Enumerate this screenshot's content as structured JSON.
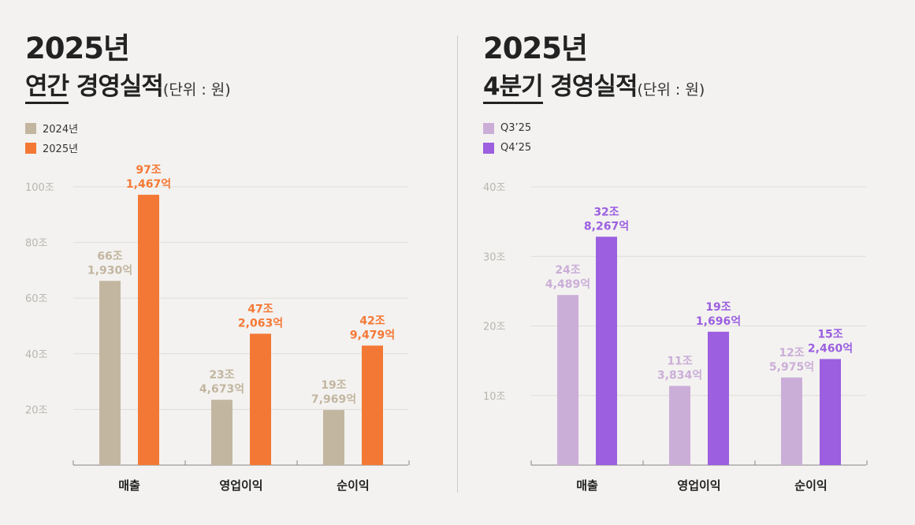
{
  "panels": [
    {
      "title_year": "2025년",
      "title_underlined": "연간",
      "title_rest": " 경영실적",
      "unit": "(단위 : 원)",
      "chart_data": {
        "type": "bar",
        "categories": [
          "매출",
          "영업이익",
          "순이익"
        ],
        "y_ticks": [
          20,
          40,
          60,
          80,
          100
        ],
        "y_tick_labels": [
          "20조",
          "40조",
          "60조",
          "80조",
          "100조"
        ],
        "ylim": [
          0,
          100
        ],
        "grid": true,
        "legend": "top-left",
        "series": [
          {
            "name": "2024년",
            "color": "#c3b6a0",
            "values": [
              66.193,
              23.4673,
              19.7969
            ],
            "labels": [
              [
                "66조",
                "1,930억"
              ],
              [
                "23조",
                "4,673억"
              ],
              [
                "19조",
                "7,969억"
              ]
            ]
          },
          {
            "name": "2025년",
            "color": "#f47835",
            "values": [
              97.1467,
              47.2063,
              42.9479
            ],
            "labels": [
              [
                "97조",
                "1,467억"
              ],
              [
                "47조",
                "2,063억"
              ],
              [
                "42조",
                "9,479억"
              ]
            ]
          }
        ]
      }
    },
    {
      "title_year": "2025년",
      "title_underlined": "4분기",
      "title_rest": " 경영실적",
      "unit": "(단위 : 원)",
      "chart_data": {
        "type": "bar",
        "categories": [
          "매출",
          "영업이익",
          "순이익"
        ],
        "y_ticks": [
          10,
          20,
          30,
          40
        ],
        "y_tick_labels": [
          "10조",
          "20조",
          "30조",
          "40조"
        ],
        "ylim": [
          0,
          40
        ],
        "grid": true,
        "legend": "top-left",
        "series": [
          {
            "name": "Q3’25",
            "color": "#cbaed8",
            "values": [
              24.4489,
              11.3834,
              12.5975
            ],
            "labels": [
              [
                "24조",
                "4,489억"
              ],
              [
                "11조",
                "3,834억"
              ],
              [
                "12조",
                "5,975억"
              ]
            ]
          },
          {
            "name": "Q4’25",
            "color": "#9b5fe0",
            "values": [
              32.8267,
              19.1696,
              15.246
            ],
            "labels": [
              [
                "32조",
                "8,267억"
              ],
              [
                "19조",
                "1,696억"
              ],
              [
                "15조",
                "2,460억"
              ]
            ]
          }
        ]
      }
    }
  ]
}
